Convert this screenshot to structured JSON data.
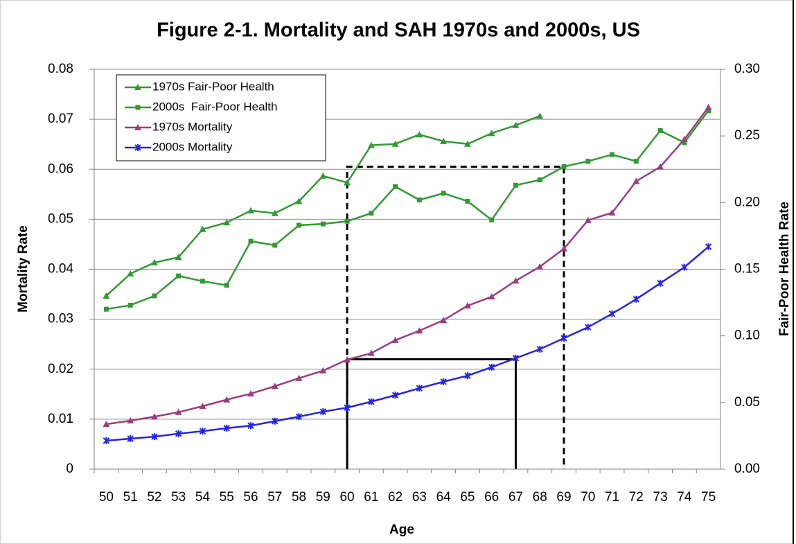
{
  "chart_data": {
    "type": "line",
    "title": "Figure 2-1. Mortality and SAH 1970s and 2000s, US",
    "x_label": "Age",
    "y_label": "Mortality Rate",
    "y2_label": "Fair-Poor Health Rate",
    "categories": [
      "50",
      "51",
      "52",
      "53",
      "54",
      "55",
      "56",
      "57",
      "58",
      "59",
      "60",
      "61",
      "62",
      "63",
      "64",
      "65",
      "66",
      "67",
      "68",
      "69",
      "70",
      "71",
      "72",
      "73",
      "74",
      "75"
    ],
    "ylim": [
      0,
      0.08
    ],
    "yticks": [
      0,
      0.01,
      0.02,
      0.03,
      0.04,
      0.05,
      0.06,
      0.07,
      0.08
    ],
    "y2lim": [
      0,
      0.3
    ],
    "y2ticks": [
      {
        "value": 0,
        "label": "0.00"
      },
      0.05,
      {
        "value": 0.1,
        "label": "0.10"
      },
      0.15,
      {
        "value": 0.2,
        "label": "0.20"
      },
      0.25,
      {
        "value": 0.3,
        "label": "0.30"
      }
    ],
    "grid": true,
    "legend": "top-left",
    "series": [
      {
        "name": "1970s Fair-Poor Health",
        "color": "#339933",
        "marker": "triangle",
        "axis": "y2",
        "values": [
          0.13,
          0.1466,
          0.155,
          0.159,
          0.18,
          0.185,
          0.194,
          0.192,
          0.201,
          0.22,
          0.215,
          0.243,
          0.244,
          0.251,
          0.246,
          0.244,
          0.252,
          0.258,
          0.265,
          null,
          null,
          null,
          null,
          null,
          null,
          null
        ]
      },
      {
        "name": "2000s  Fair-Poor Health",
        "color": "#339933",
        "marker": "square",
        "axis": "y2",
        "values": [
          0.12,
          0.123,
          0.13,
          0.145,
          0.141,
          0.138,
          0.171,
          0.168,
          0.183,
          0.184,
          0.186,
          0.192,
          0.212,
          0.202,
          0.207,
          0.201,
          0.187,
          0.213,
          0.217,
          0.227,
          0.231,
          0.236,
          0.231,
          0.254,
          0.245,
          0.269
        ]
      },
      {
        "name": "1970s Mortality",
        "color": "#993d80",
        "marker": "triangle",
        "values": [
          0.009,
          0.0097,
          0.0105,
          0.0114,
          0.0126,
          0.0139,
          0.0151,
          0.0166,
          0.0182,
          0.0197,
          0.0219,
          0.0232,
          0.0258,
          0.0277,
          0.0298,
          0.0327,
          0.0345,
          0.0377,
          0.0405,
          0.0441,
          0.0498,
          0.0513,
          0.0576,
          0.0605,
          0.066,
          0.0724
        ]
      },
      {
        "name": "2000s Mortality",
        "color": "#2424e6",
        "marker": "x",
        "values": [
          0.0057,
          0.0061,
          0.0065,
          0.0071,
          0.0076,
          0.0082,
          0.0087,
          0.0096,
          0.0105,
          0.0115,
          0.0123,
          0.0135,
          0.0148,
          0.0162,
          0.0175,
          0.0187,
          0.0204,
          0.0222,
          0.024,
          0.0262,
          0.0284,
          0.0311,
          0.034,
          0.0372,
          0.0404,
          0.0445
        ]
      }
    ],
    "reference_lines": [
      {
        "from": "60",
        "to": "67",
        "y": 0.022,
        "style": "solid"
      },
      {
        "from": "60",
        "to": "69",
        "y": 0.0605,
        "style": "dashed"
      }
    ]
  }
}
